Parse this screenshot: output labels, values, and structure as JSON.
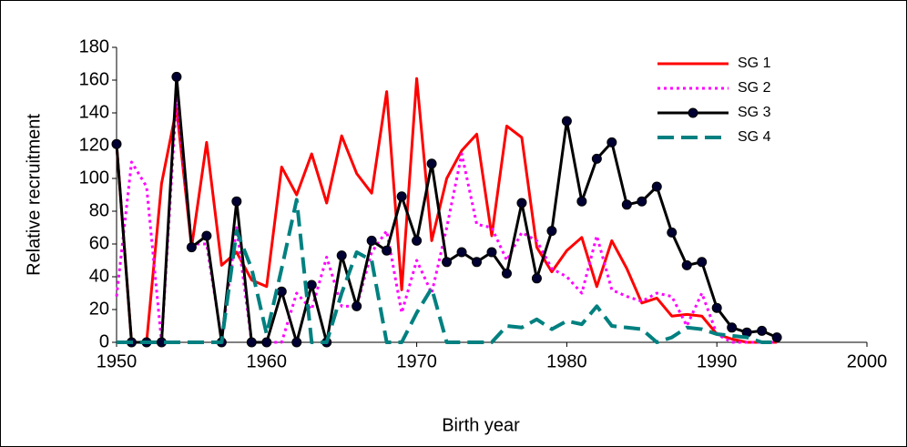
{
  "chart_data": {
    "type": "line",
    "x_label": "Birth year",
    "y_label": "Relative recruitment",
    "x": [
      1950,
      1951,
      1952,
      1953,
      1954,
      1955,
      1956,
      1957,
      1958,
      1959,
      1960,
      1961,
      1962,
      1963,
      1964,
      1965,
      1966,
      1967,
      1968,
      1969,
      1970,
      1971,
      1972,
      1973,
      1974,
      1975,
      1976,
      1977,
      1978,
      1979,
      1980,
      1981,
      1982,
      1983,
      1984,
      1985,
      1986,
      1987,
      1988,
      1989,
      1990,
      1991,
      1992,
      1993,
      1994
    ],
    "series": [
      {
        "name": "SG 1",
        "color": "#ff0000",
        "style": "solid",
        "values": [
          121,
          0,
          0,
          97,
          143,
          58,
          122,
          47,
          55,
          38,
          34,
          107,
          90,
          115,
          85,
          126,
          103,
          91,
          153,
          32,
          161,
          62,
          100,
          117,
          127,
          65,
          132,
          125,
          58,
          43,
          56,
          64,
          34,
          62,
          45,
          24,
          27,
          16,
          17,
          16,
          5,
          2,
          0,
          0,
          0
        ]
      },
      {
        "name": "SG 2",
        "color": "#ff00ff",
        "style": "dotted",
        "values": [
          28,
          110,
          95,
          0,
          150,
          60,
          60,
          2,
          70,
          0,
          0,
          0,
          30,
          20,
          52,
          22,
          22,
          55,
          68,
          18,
          50,
          30,
          70,
          115,
          72,
          70,
          50,
          67,
          62,
          45,
          40,
          30,
          65,
          32,
          28,
          25,
          30,
          28,
          10,
          30,
          5,
          0,
          0,
          0,
          0
        ]
      },
      {
        "name": "SG 3",
        "color": "#000000",
        "style": "solid",
        "marker": "circle",
        "values": [
          121,
          0,
          0,
          0,
          162,
          58,
          65,
          0,
          86,
          0,
          0,
          31,
          0,
          35,
          0,
          53,
          22,
          62,
          56,
          89,
          62,
          109,
          49,
          55,
          49,
          55,
          42,
          85,
          39,
          68,
          135,
          86,
          112,
          122,
          84,
          86,
          95,
          67,
          47,
          49,
          21,
          9,
          6,
          7,
          3
        ]
      },
      {
        "name": "SG 4",
        "color": "#008080",
        "style": "dashed",
        "values": [
          0,
          0,
          0,
          0,
          0,
          0,
          0,
          0,
          68,
          45,
          5,
          45,
          87,
          0,
          0,
          30,
          55,
          50,
          0,
          0,
          18,
          33,
          0,
          0,
          0,
          0,
          10,
          9,
          14,
          8,
          13,
          11,
          22,
          10,
          9,
          8,
          0,
          3,
          9,
          8,
          5,
          4,
          3,
          0,
          0
        ]
      }
    ],
    "xlim": [
      1950,
      2000
    ],
    "xticks": [
      1950,
      1960,
      1970,
      1980,
      1990,
      2000
    ],
    "ylim": [
      0,
      180
    ],
    "yticks": [
      0,
      20,
      40,
      60,
      80,
      100,
      120,
      140,
      160,
      180
    ],
    "grid": false,
    "legend": "top-right"
  }
}
